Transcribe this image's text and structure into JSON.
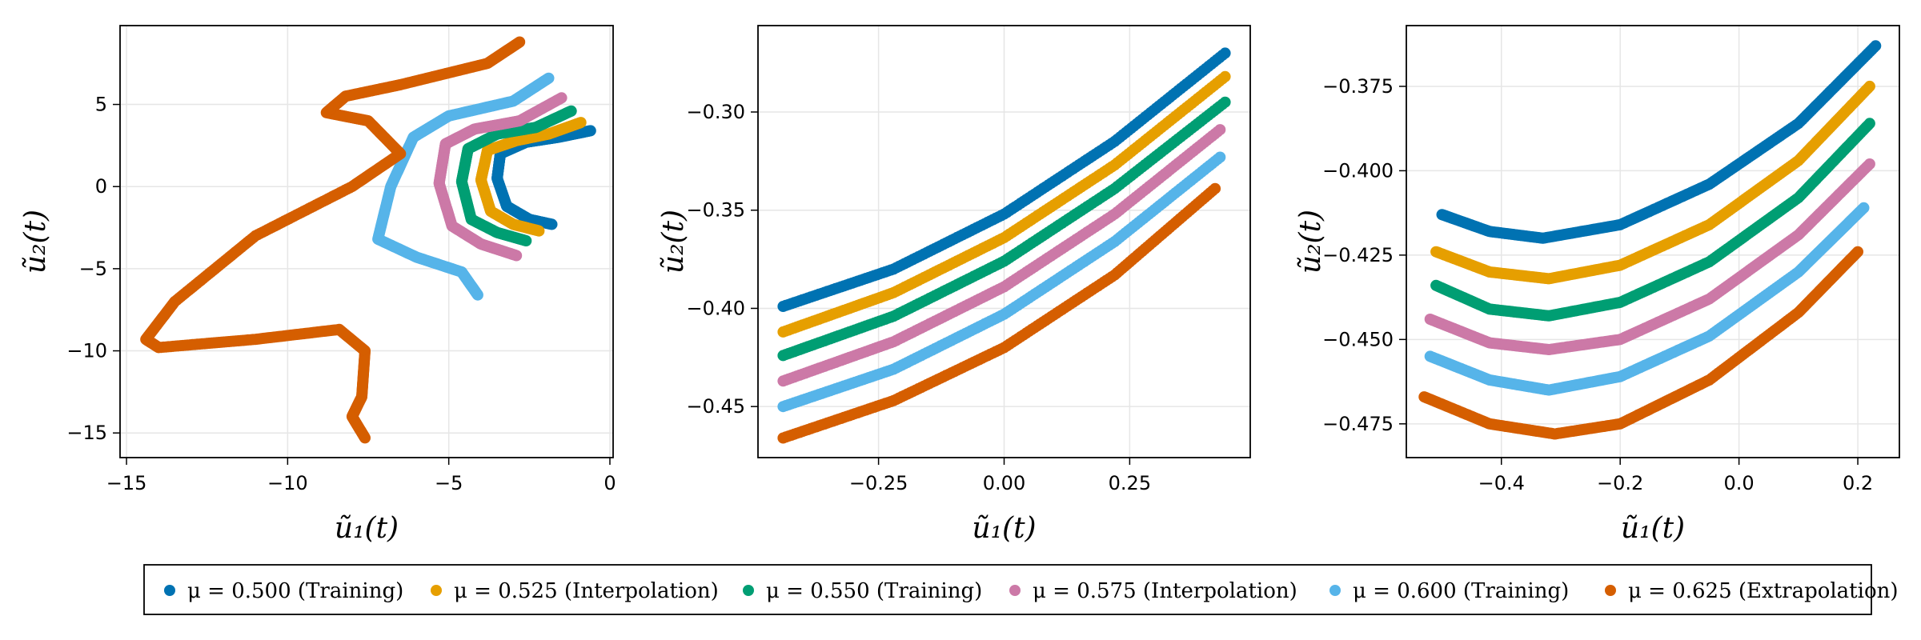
{
  "colors": [
    "#0072b2",
    "#e69f00",
    "#009e73",
    "#cc79a7",
    "#56b4e9",
    "#d55e00"
  ],
  "legend": [
    {
      "label": "μ = 0.500 (Training)",
      "color": "#0072b2"
    },
    {
      "label": "μ = 0.525 (Interpolation)",
      "color": "#e69f00"
    },
    {
      "label": "μ = 0.550 (Training)",
      "color": "#009e73"
    },
    {
      "label": "μ = 0.575 (Interpolation)",
      "color": "#cc79a7"
    },
    {
      "label": "μ = 0.600 (Training)",
      "color": "#56b4e9"
    },
    {
      "label": "μ = 0.625 (Extrapolation)",
      "color": "#d55e00"
    }
  ],
  "chart_data": [
    {
      "type": "scatter",
      "xlabel": "ũ₁(t)",
      "ylabel": "ũ₂(t)",
      "xlim": [
        -15.2,
        0.1
      ],
      "ylim": [
        -16.5,
        9.8
      ],
      "xticks": [
        -15,
        -10,
        -5,
        0
      ],
      "yticks": [
        -15,
        -10,
        -5,
        0,
        5
      ],
      "xtick_labels": [
        "−15",
        "−10",
        "−5",
        "0"
      ],
      "ytick_labels": [
        "−15",
        "−10",
        "−5",
        "0",
        "5"
      ],
      "grid": true,
      "series": [
        {
          "x": [
            -1.8,
            -2.5,
            -3.2,
            -3.5,
            -3.4,
            -2.6,
            -1.6,
            -0.6
          ],
          "y": [
            -2.3,
            -2.0,
            -1.2,
            0.5,
            2.0,
            2.7,
            3.0,
            3.4
          ]
        },
        {
          "x": [
            -2.2,
            -3.0,
            -3.7,
            -4.0,
            -3.8,
            -2.9,
            -1.9,
            -0.9
          ],
          "y": [
            -2.7,
            -2.3,
            -1.5,
            0.4,
            2.2,
            2.8,
            3.2,
            3.9
          ]
        },
        {
          "x": [
            -2.6,
            -3.5,
            -4.3,
            -4.6,
            -4.4,
            -3.5,
            -2.3,
            -1.2
          ],
          "y": [
            -3.3,
            -2.8,
            -2.0,
            0.3,
            2.3,
            3.2,
            3.6,
            4.6
          ]
        },
        {
          "x": [
            -2.9,
            -4.0,
            -4.9,
            -5.3,
            -5.1,
            -4.2,
            -2.8,
            -1.5
          ],
          "y": [
            -4.2,
            -3.5,
            -2.4,
            0.2,
            2.6,
            3.5,
            4.0,
            5.4
          ]
        },
        {
          "x": [
            -4.1,
            -4.6,
            -6.0,
            -7.2,
            -6.8,
            -6.1,
            -5.0,
            -3.0,
            -1.9
          ],
          "y": [
            -6.6,
            -5.2,
            -4.3,
            -3.2,
            0.0,
            3.0,
            4.3,
            5.2,
            6.6
          ]
        },
        {
          "x": [
            -7.6,
            -8.0,
            -7.7,
            -7.6,
            -8.4,
            -11.0,
            -14.0,
            -14.4,
            -13.5,
            -11.0,
            -8.0,
            -6.5,
            -7.5,
            -8.8,
            -8.2,
            -6.5,
            -3.8,
            -2.8
          ],
          "y": [
            -15.3,
            -14.0,
            -12.8,
            -10.0,
            -8.7,
            -9.3,
            -9.8,
            -9.3,
            -7.0,
            -3.0,
            0.0,
            2.0,
            4.0,
            4.5,
            5.5,
            6.2,
            7.5,
            8.8
          ]
        }
      ]
    },
    {
      "type": "scatter",
      "xlabel": "ũ₁(t)",
      "ylabel": "ũ₂(t)",
      "xlim": [
        -0.49,
        0.49
      ],
      "ylim": [
        -0.476,
        -0.256
      ],
      "xticks": [
        -0.25,
        0.0,
        0.25
      ],
      "yticks": [
        -0.45,
        -0.4,
        -0.35,
        -0.3
      ],
      "xtick_labels": [
        "−0.25",
        "0.00",
        "0.25"
      ],
      "ytick_labels": [
        "−0.45",
        "−0.40",
        "−0.35",
        "−0.30"
      ],
      "grid": true,
      "series": [
        {
          "x": [
            -0.44,
            -0.22,
            0.0,
            0.22,
            0.44
          ],
          "y": [
            -0.399,
            -0.38,
            -0.352,
            -0.315,
            -0.27
          ]
        },
        {
          "x": [
            -0.44,
            -0.22,
            0.0,
            0.22,
            0.44
          ],
          "y": [
            -0.412,
            -0.392,
            -0.364,
            -0.327,
            -0.282
          ]
        },
        {
          "x": [
            -0.44,
            -0.22,
            0.0,
            0.22,
            0.44
          ],
          "y": [
            -0.424,
            -0.404,
            -0.376,
            -0.339,
            -0.295
          ]
        },
        {
          "x": [
            -0.44,
            -0.22,
            0.0,
            0.22,
            0.43
          ],
          "y": [
            -0.437,
            -0.417,
            -0.389,
            -0.352,
            -0.309
          ]
        },
        {
          "x": [
            -0.44,
            -0.22,
            0.0,
            0.22,
            0.43
          ],
          "y": [
            -0.45,
            -0.431,
            -0.403,
            -0.366,
            -0.323
          ]
        },
        {
          "x": [
            -0.44,
            -0.22,
            0.0,
            0.22,
            0.42
          ],
          "y": [
            -0.466,
            -0.447,
            -0.42,
            -0.383,
            -0.339
          ]
        }
      ]
    },
    {
      "type": "scatter",
      "xlabel": "ũ₁(t)",
      "ylabel": "ũ₂(t)",
      "xlim": [
        -0.56,
        0.27
      ],
      "ylim": [
        -0.485,
        -0.357
      ],
      "xticks": [
        -0.4,
        -0.2,
        0.0,
        0.2
      ],
      "yticks": [
        -0.475,
        -0.45,
        -0.425,
        -0.4,
        -0.375
      ],
      "xtick_labels": [
        "−0.4",
        "−0.2",
        "0.0",
        "0.2"
      ],
      "ytick_labels": [
        "−0.475",
        "−0.450",
        "−0.425",
        "−0.400",
        "−0.375"
      ],
      "grid": true,
      "series": [
        {
          "x": [
            -0.5,
            -0.42,
            -0.33,
            -0.2,
            -0.05,
            0.1,
            0.23
          ],
          "y": [
            -0.413,
            -0.418,
            -0.42,
            -0.416,
            -0.404,
            -0.386,
            -0.363
          ]
        },
        {
          "x": [
            -0.51,
            -0.42,
            -0.32,
            -0.2,
            -0.05,
            0.1,
            0.22
          ],
          "y": [
            -0.424,
            -0.43,
            -0.432,
            -0.428,
            -0.416,
            -0.397,
            -0.375
          ]
        },
        {
          "x": [
            -0.51,
            -0.42,
            -0.32,
            -0.2,
            -0.05,
            0.1,
            0.22
          ],
          "y": [
            -0.434,
            -0.441,
            -0.443,
            -0.439,
            -0.427,
            -0.408,
            -0.386
          ]
        },
        {
          "x": [
            -0.52,
            -0.42,
            -0.32,
            -0.2,
            -0.05,
            0.1,
            0.22
          ],
          "y": [
            -0.444,
            -0.451,
            -0.453,
            -0.45,
            -0.438,
            -0.419,
            -0.398
          ]
        },
        {
          "x": [
            -0.52,
            -0.42,
            -0.32,
            -0.2,
            -0.05,
            0.1,
            0.21
          ],
          "y": [
            -0.455,
            -0.462,
            -0.465,
            -0.461,
            -0.449,
            -0.43,
            -0.411
          ]
        },
        {
          "x": [
            -0.53,
            -0.42,
            -0.31,
            -0.2,
            -0.05,
            0.1,
            0.2
          ],
          "y": [
            -0.467,
            -0.475,
            -0.478,
            -0.475,
            -0.462,
            -0.442,
            -0.424
          ]
        }
      ]
    }
  ]
}
